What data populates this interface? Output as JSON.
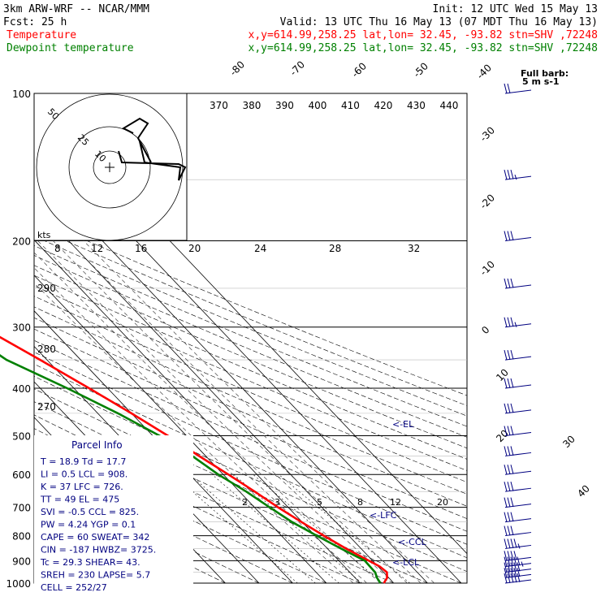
{
  "header": {
    "model": "3km ARW-WRF -- NCAR/MMM",
    "init": "Init: 12 UTC Wed 15 May 13",
    "fcst": "Fcst:   25 h",
    "valid": "Valid: 13 UTC Thu 16 May 13 (07 MDT Thu 16 May 13)",
    "temp_line_label": "Temperature",
    "temp_line_info": "x,y=614.99,258.25   lat,lon= 32.45, -93.82  stn=SHV ,72248",
    "dew_line_label": "Dewpoint temperature",
    "dew_line_info": "x,y=614.99,258.25   lat,lon= 32.45, -93.82  stn=SHV ,72248"
  },
  "colors": {
    "temperature": "#ff0000",
    "dewpoint": "#008000",
    "barbs": "#000080",
    "grid": "#000000"
  },
  "barb_key": {
    "line1": "Full barb:",
    "line2": "5 m s-1"
  },
  "hodograph": {
    "kts_label": "kts",
    "rings": [
      "50",
      "25",
      "10"
    ]
  },
  "parcel_info": {
    "title": "Parcel Info",
    "rows": [
      "T  =    18.9 Td =  17.7",
      "LI =     0.5 LCL = 908.",
      "K  =      37 LFC = 726.",
      "TT =      49 EL  =  475",
      "SVI =   -0.5 CCL = 825.",
      "PW =    4.24 YGP =  0.1",
      "CAPE =    60 SWEAT=  342",
      "CIN =   -187 HWBZ= 3725.",
      "Tc =    29.3 SHEAR= 43.",
      "SREH =   230 LAPSE= 5.7",
      "CELL = 252/27"
    ]
  },
  "levels": {
    "el": "<-EL",
    "lfc": "<-LFC",
    "ccl": "<-CCL",
    "lcl": "<-LCL"
  },
  "chart_data": {
    "type": "line",
    "chart_kind": "skew-T log-P sounding",
    "pressure_levels": [
      "100",
      "200",
      "300",
      "400",
      "500",
      "600",
      "700",
      "800",
      "900",
      "1000"
    ],
    "isotherm_labels": [
      "-80",
      "-70",
      "-60",
      "-50",
      "-40",
      "-30",
      "-20",
      "-10",
      "0",
      "10",
      "20",
      "30",
      "40"
    ],
    "theta_labels": [
      "370",
      "380",
      "390",
      "400",
      "410",
      "420",
      "430",
      "440"
    ],
    "upper_temp_labels": [
      "8",
      "12",
      "16",
      "20",
      "24",
      "28",
      "32"
    ],
    "left_theta_labels": [
      "290",
      "280",
      "270"
    ],
    "mixing_ratio_labels": [
      "2",
      "3",
      "5",
      "8",
      "12",
      "20"
    ],
    "series": [
      {
        "name": "Temperature",
        "pressure": [
          1000,
          975,
          950,
          925,
          900,
          850,
          800,
          750,
          700,
          650,
          600,
          550,
          500,
          450,
          400,
          350,
          300,
          250,
          200,
          150,
          100
        ],
        "temperature_c": [
          17,
          19.5,
          21,
          20.5,
          18.9,
          15.5,
          12.6,
          9.8,
          7,
          4.5,
          1.5,
          -2,
          -5.5,
          -10,
          -15.5,
          -22,
          -30,
          -39,
          -51,
          -62,
          -72
        ]
      },
      {
        "name": "Dewpoint temperature",
        "pressure": [
          1000,
          975,
          950,
          925,
          900,
          850,
          800,
          750,
          700,
          650,
          600,
          550,
          500,
          450,
          400,
          350,
          300,
          250,
          200,
          150,
          100
        ],
        "temperature_c": [
          16,
          16.5,
          17.5,
          17.6,
          17.7,
          14,
          10.5,
          7,
          4.5,
          2,
          -1.5,
          -4,
          -8,
          -14,
          -22,
          -32,
          -37,
          -46,
          -60,
          -75,
          -84
        ]
      }
    ],
    "wind_barbs_kts": [
      {
        "p": 1000,
        "speed": 50
      },
      {
        "p": 975,
        "speed": 50
      },
      {
        "p": 950,
        "speed": 50
      },
      {
        "p": 925,
        "speed": 45
      },
      {
        "p": 900,
        "speed": 40
      },
      {
        "p": 850,
        "speed": 35
      },
      {
        "p": 800,
        "speed": 30
      },
      {
        "p": 750,
        "speed": 30
      },
      {
        "p": 700,
        "speed": 30
      },
      {
        "p": 650,
        "speed": 30
      },
      {
        "p": 600,
        "speed": 30
      },
      {
        "p": 550,
        "speed": 30
      },
      {
        "p": 500,
        "speed": 30
      },
      {
        "p": 450,
        "speed": 30
      },
      {
        "p": 400,
        "speed": 30
      },
      {
        "p": 350,
        "speed": 30
      },
      {
        "p": 300,
        "speed": 25
      },
      {
        "p": 250,
        "speed": 30
      },
      {
        "p": 200,
        "speed": 30
      },
      {
        "p": 150,
        "speed": 25
      },
      {
        "p": 100,
        "speed": 20
      }
    ]
  }
}
